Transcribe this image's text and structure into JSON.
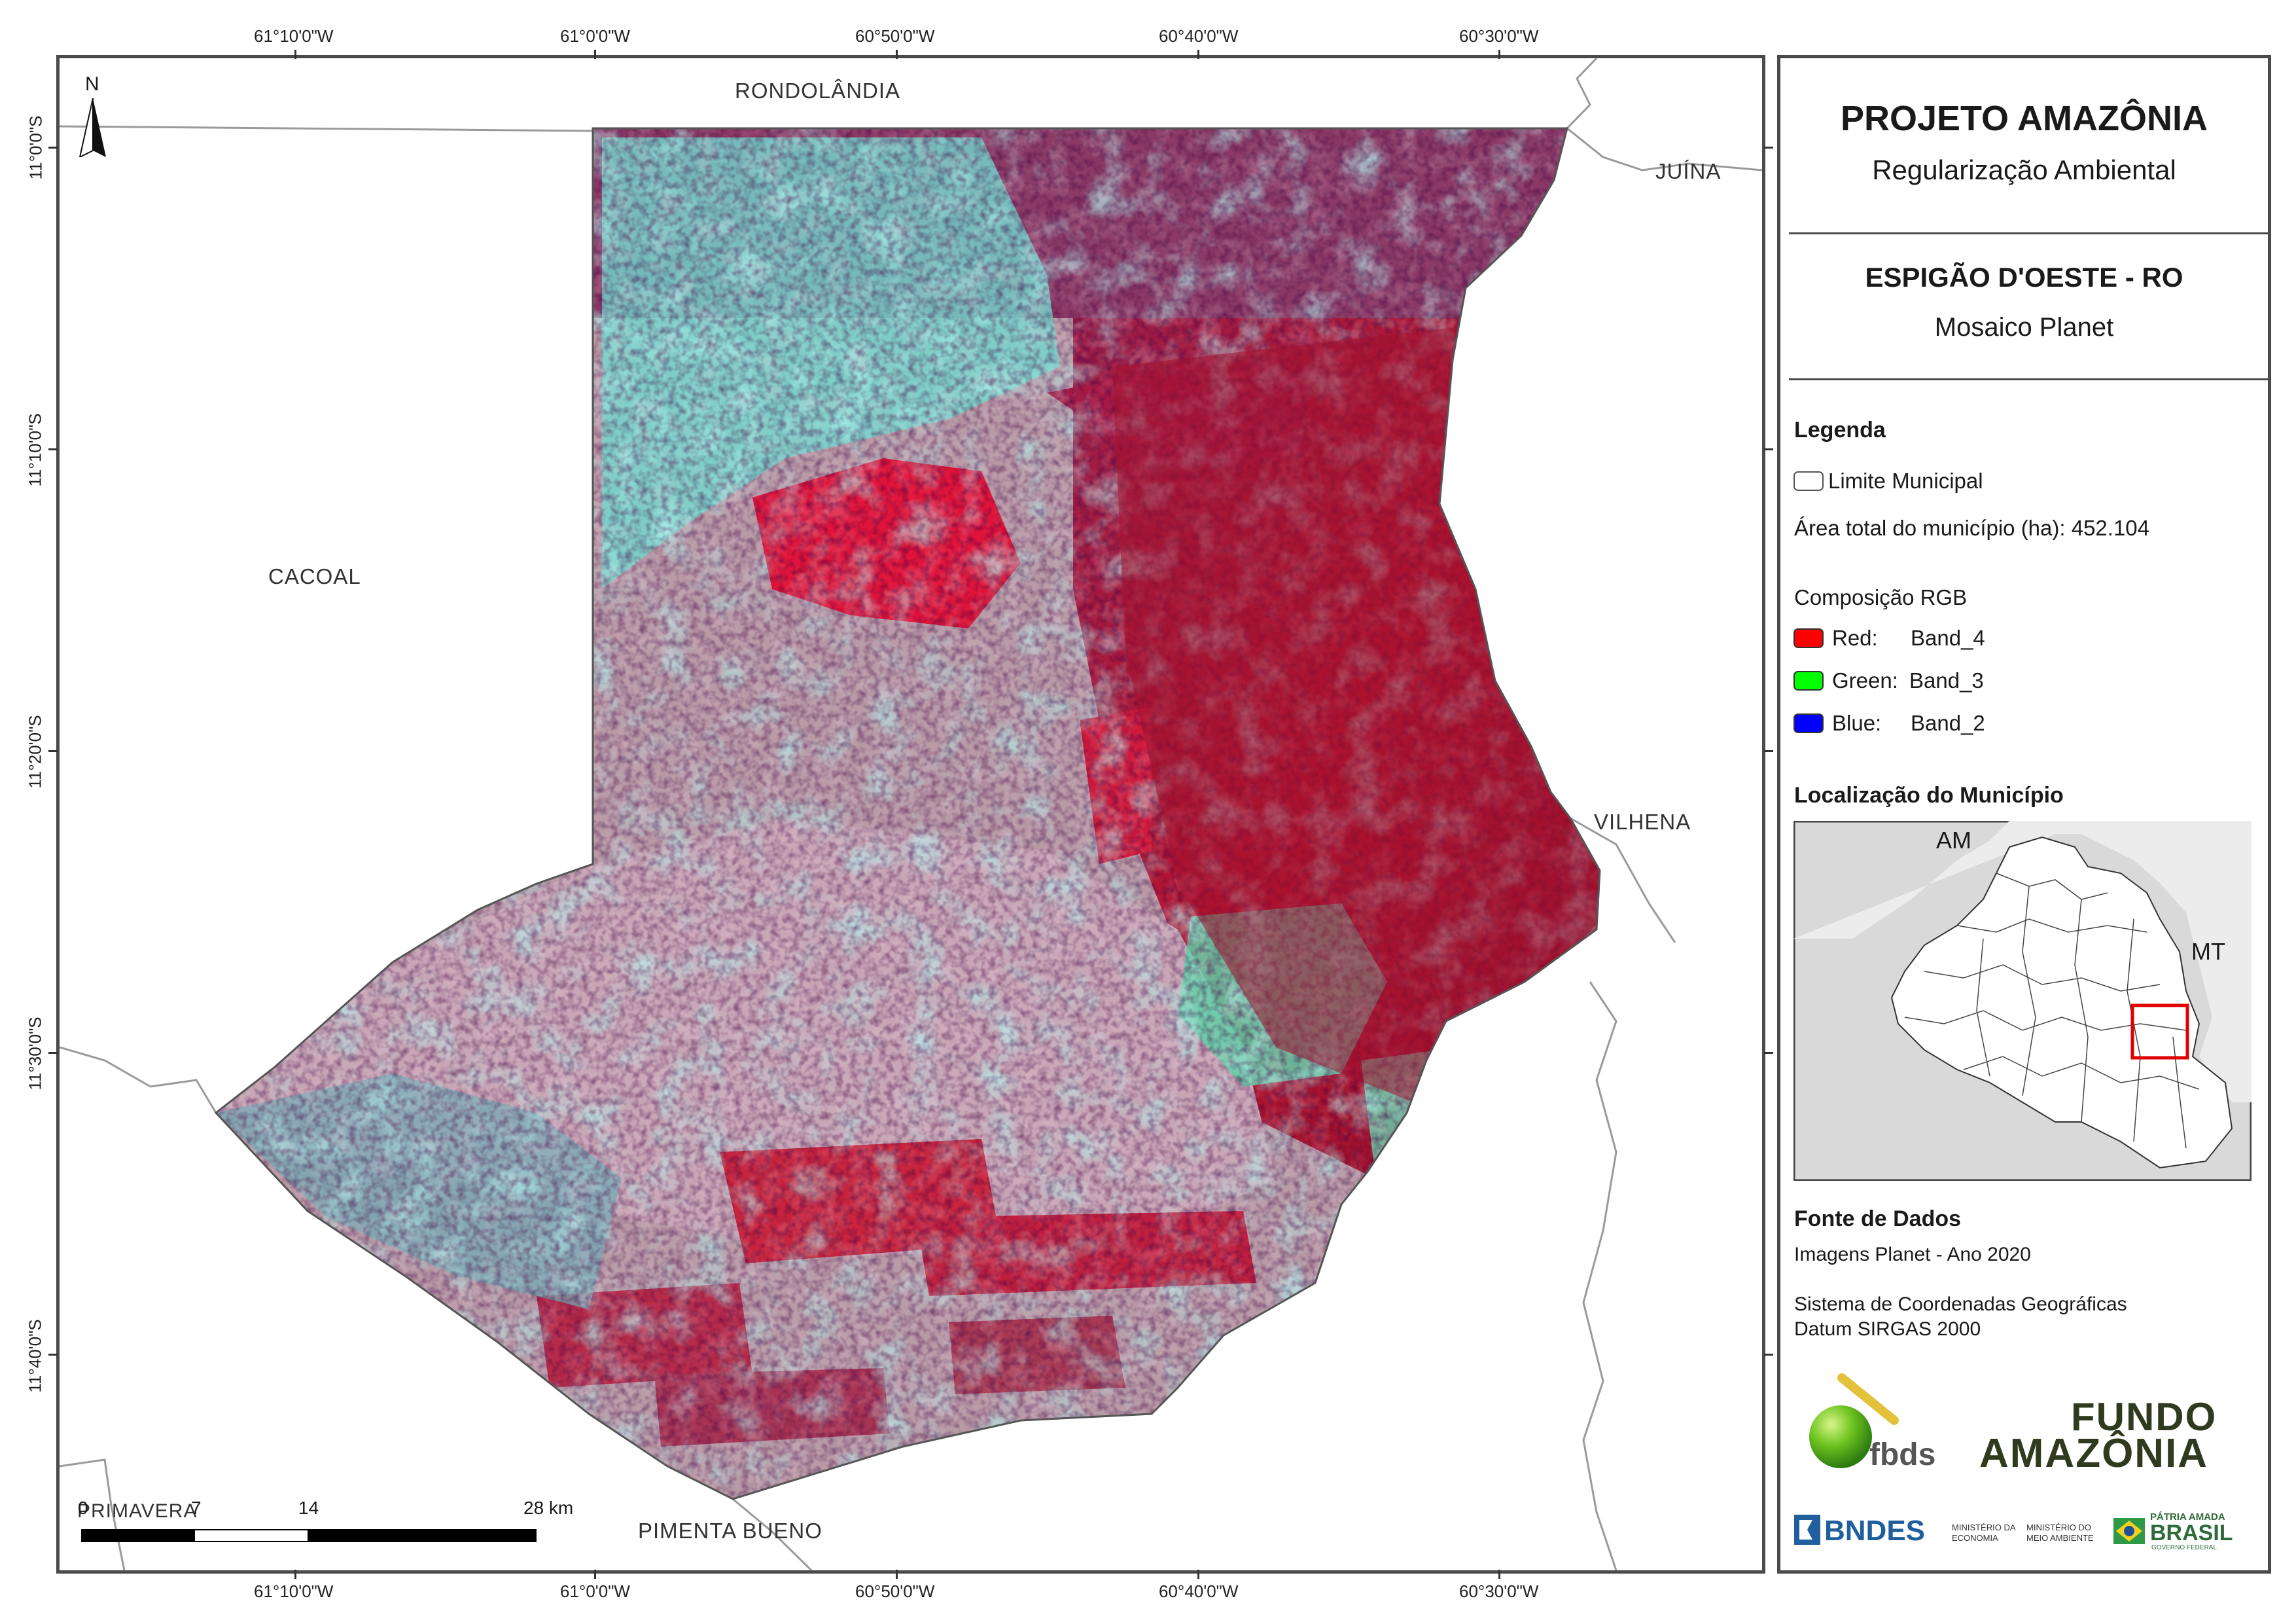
{
  "map": {
    "north_label": "N",
    "coords_top": [
      "61°10'0\"W",
      "61°0'0\"W",
      "60°50'0\"W",
      "60°40'0\"W",
      "60°30'0\"W"
    ],
    "coords_bottom": [
      "61°10'0\"W",
      "61°0'0\"W",
      "60°50'0\"W",
      "60°40'0\"W",
      "60°30'0\"W"
    ],
    "coords_left": [
      "11°0'0\"S",
      "11°10'0\"S",
      "11°20'0\"S",
      "11°30'0\"S",
      "11°40'0\"S"
    ],
    "places": {
      "rondolandia": "RONDOLÂNDIA",
      "juina": "JUÍNA",
      "cacoal": "CACOAL",
      "vilhena": "VILHENA",
      "pimenta_bueno": "PIMENTA BUENO",
      "primavera": "PRIMAVERA"
    },
    "scalebar": {
      "labels": [
        "0",
        "7",
        "14",
        "28 km"
      ]
    }
  },
  "panel": {
    "title": "PROJETO AMAZÔNIA",
    "subtitle": "Regularização Ambiental",
    "municipality": "ESPIGÃO D'OESTE - RO",
    "mosaic": "Mosaico Planet",
    "legend_heading": "Legenda",
    "legend_limit": "Limite Municipal",
    "legend_area": "Área total do município (ha): 452.104",
    "rgb_heading": "Composição RGB",
    "bands": [
      {
        "channel": "Red:",
        "band": "Band_4",
        "color": "#ff0000"
      },
      {
        "channel": "Green:",
        "band": "Band_3",
        "color": "#00ff00"
      },
      {
        "channel": "Blue:",
        "band": "Band_2",
        "color": "#0000ff"
      }
    ],
    "location_heading": "Localização do Município",
    "inset": {
      "label_am": "AM",
      "label_mt": "MT",
      "highlight_color": "#e00000"
    },
    "sources_heading": "Fonte de Dados",
    "source_line1": "Imagens Planet - Ano 2020",
    "source_line2": "Sistema de Coordenadas Geográficas",
    "source_line3": "Datum SIRGAS 2000",
    "logos": {
      "fbds": "fbds",
      "fundo_line1": "FUNDO",
      "fundo_line2": "AMAZÔNIA",
      "bndes": "BNDES",
      "min_economia": [
        "MINISTÉRIO DA",
        "ECONOMIA"
      ],
      "min_meio": [
        "MINISTÉRIO DO",
        "MEIO AMBIENTE"
      ],
      "patria": "PÁTRIA AMADA",
      "brasil": "BRASIL",
      "gov": "GOVERNO FEDERAL"
    }
  }
}
